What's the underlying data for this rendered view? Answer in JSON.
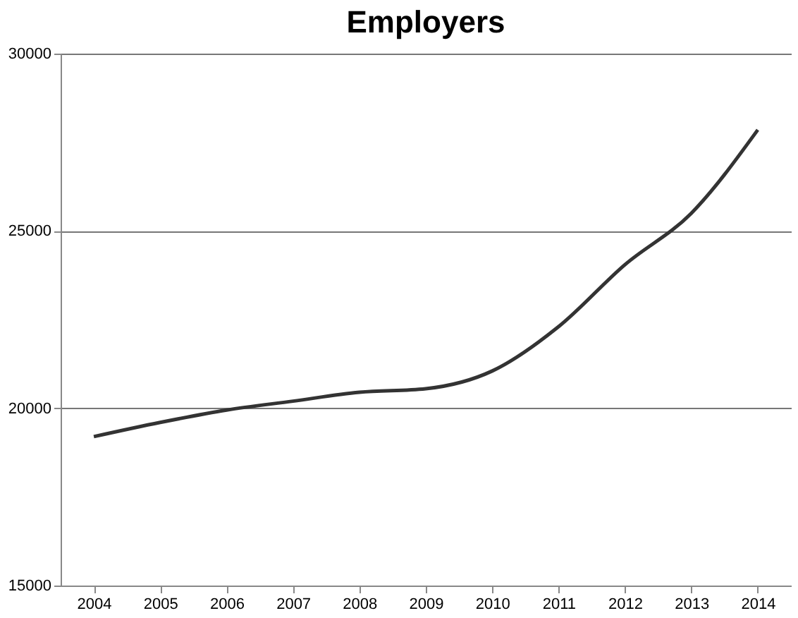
{
  "chart_data": {
    "type": "line",
    "title": "Employers",
    "categories": [
      "2004",
      "2005",
      "2006",
      "2007",
      "2008",
      "2009",
      "2010",
      "2011",
      "2012",
      "2013",
      "2014"
    ],
    "series": [
      {
        "color": "#333333",
        "values": [
          19200,
          19600,
          19950,
          20200,
          20450,
          20550,
          21050,
          22300,
          24050,
          25500,
          27850
        ]
      }
    ],
    "ylim": [
      15000,
      30000
    ],
    "yticks": [
      15000,
      20000,
      25000,
      30000
    ],
    "grid": "y",
    "marker": "none",
    "line_style": "solid",
    "legend": false
  }
}
